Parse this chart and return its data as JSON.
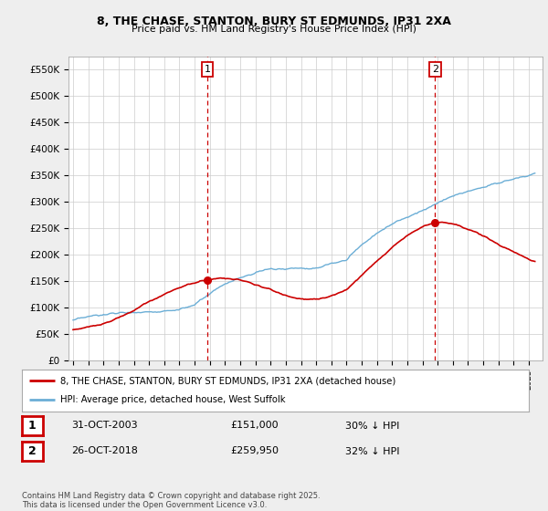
{
  "title": "8, THE CHASE, STANTON, BURY ST EDMUNDS, IP31 2XA",
  "subtitle": "Price paid vs. HM Land Registry's House Price Index (HPI)",
  "background_color": "#eeeeee",
  "plot_bg_color": "#ffffff",
  "ylim": [
    0,
    575000
  ],
  "yticks": [
    0,
    50000,
    100000,
    150000,
    200000,
    250000,
    300000,
    350000,
    400000,
    450000,
    500000,
    550000
  ],
  "ytick_labels": [
    "£0",
    "£50K",
    "£100K",
    "£150K",
    "£200K",
    "£250K",
    "£300K",
    "£350K",
    "£400K",
    "£450K",
    "£500K",
    "£550K"
  ],
  "hpi_color": "#6baed6",
  "price_color": "#cc0000",
  "marker1_date": 2003.83,
  "marker1_price": 151000,
  "marker2_date": 2018.82,
  "marker2_price": 259950,
  "legend_label1": "8, THE CHASE, STANTON, BURY ST EDMUNDS, IP31 2XA (detached house)",
  "legend_label2": "HPI: Average price, detached house, West Suffolk",
  "table_row1": [
    "1",
    "31-OCT-2003",
    "£151,000",
    "30% ↓ HPI"
  ],
  "table_row2": [
    "2",
    "26-OCT-2018",
    "£259,950",
    "32% ↓ HPI"
  ],
  "footnote": "Contains HM Land Registry data © Crown copyright and database right 2025.\nThis data is licensed under the Open Government Licence v3.0.",
  "grid_color": "#cccccc"
}
